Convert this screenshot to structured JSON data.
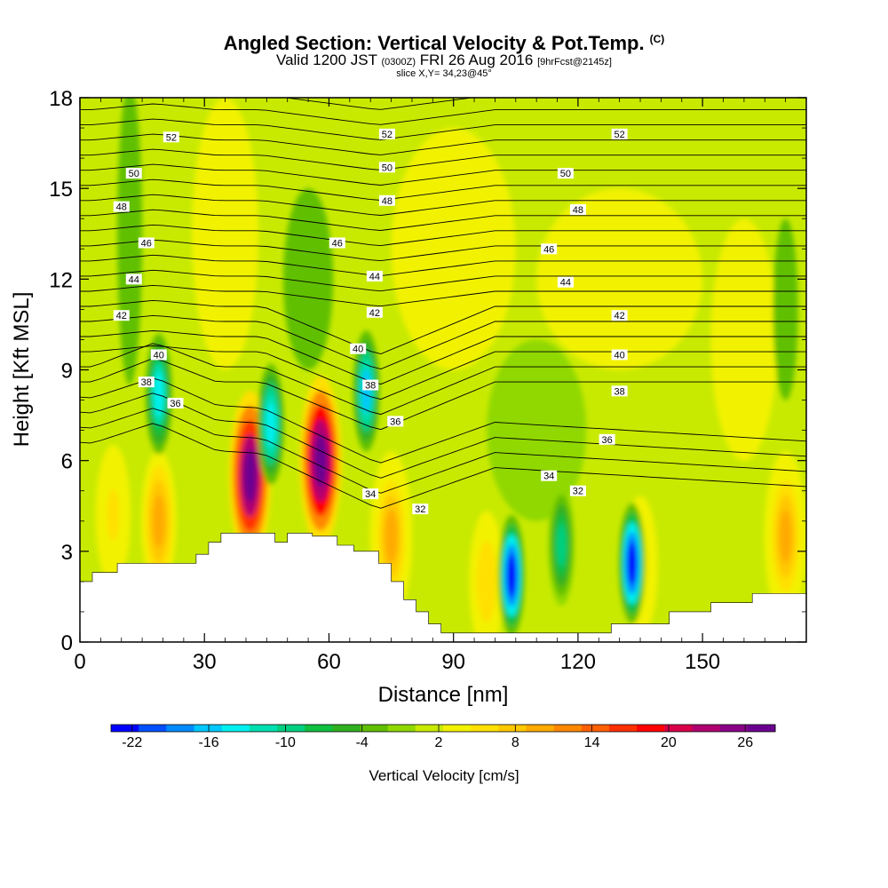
{
  "title": "Angled Section: Vertical Velocity & Pot.Temp.",
  "copyright": "(C)",
  "subtitle": {
    "valid": "Valid 1200 JST",
    "utc": "(0300Z)",
    "date": "FRI 26 Aug 2016",
    "fcst": "[9hrFcst@2145z]"
  },
  "slice": "slice X,Y= 34,23@45°",
  "chart_data": {
    "type": "heatmap",
    "xlabel": "Distance [nm]",
    "ylabel": "Height [Kft MSL]",
    "xlim": [
      0,
      175
    ],
    "ylim": [
      0,
      18
    ],
    "x_ticks": [
      0,
      30,
      60,
      90,
      120,
      150
    ],
    "y_ticks": [
      0,
      3,
      6,
      9,
      12,
      15,
      18
    ],
    "colorbar": {
      "label": "Vertical Velocity [cm/s]",
      "tick_labels": [
        "-22",
        "-16",
        "-10",
        "-4",
        "2",
        "8",
        "14",
        "20",
        "26"
      ],
      "tick_values": [
        -22,
        -16,
        -10,
        -4,
        2,
        8,
        14,
        20,
        26
      ],
      "colors": [
        "#0000ff",
        "#0050ff",
        "#008cff",
        "#00c8ff",
        "#00f0f0",
        "#00e0b0",
        "#00d080",
        "#10c040",
        "#30b020",
        "#60c000",
        "#90d800",
        "#c8ea00",
        "#f2f200",
        "#ffe000",
        "#ffc800",
        "#ffaa00",
        "#ff8800",
        "#ff6000",
        "#ff3000",
        "#ff0000",
        "#d8004a",
        "#b00070",
        "#8a0088",
        "#6a0090"
      ]
    },
    "terrain": [
      [
        0,
        2.0
      ],
      [
        3,
        2.0
      ],
      [
        3,
        2.3
      ],
      [
        9,
        2.3
      ],
      [
        9,
        2.6
      ],
      [
        28,
        2.6
      ],
      [
        28,
        2.9
      ],
      [
        31,
        2.9
      ],
      [
        31,
        3.3
      ],
      [
        34,
        3.3
      ],
      [
        34,
        3.6
      ],
      [
        47,
        3.6
      ],
      [
        47,
        3.3
      ],
      [
        50,
        3.3
      ],
      [
        50,
        3.6
      ],
      [
        56,
        3.6
      ],
      [
        56,
        3.5
      ],
      [
        62,
        3.5
      ],
      [
        62,
        3.2
      ],
      [
        66,
        3.2
      ],
      [
        66,
        3.0
      ],
      [
        72,
        3.0
      ],
      [
        72,
        2.6
      ],
      [
        75,
        2.6
      ],
      [
        75,
        2.0
      ],
      [
        78,
        2.0
      ],
      [
        78,
        1.4
      ],
      [
        81,
        1.4
      ],
      [
        81,
        1.0
      ],
      [
        84,
        1.0
      ],
      [
        84,
        0.6
      ],
      [
        87,
        0.6
      ],
      [
        87,
        0.3
      ],
      [
        128,
        0.3
      ],
      [
        128,
        0.6
      ],
      [
        142,
        0.6
      ],
      [
        142,
        1.0
      ],
      [
        152,
        1.0
      ],
      [
        152,
        1.3
      ],
      [
        162,
        1.3
      ],
      [
        162,
        1.6
      ],
      [
        175,
        1.6
      ],
      [
        175,
        0
      ],
      [
        0,
        0
      ]
    ],
    "updraft_cores": [
      {
        "x": 8,
        "y": 4.2,
        "w": 5,
        "v": 12
      },
      {
        "x": 19,
        "y": 4.0,
        "w": 9,
        "v": 12
      },
      {
        "x": 41,
        "y": 5.5,
        "w": 28,
        "v": 20
      },
      {
        "x": 58,
        "y": 6.0,
        "w": 29,
        "v": 24
      },
      {
        "x": 75,
        "y": 3.5,
        "w": 10,
        "v": 11
      },
      {
        "x": 98,
        "y": 2.0,
        "w": 6,
        "v": 9
      },
      {
        "x": 135,
        "y": 2.5,
        "w": 5,
        "v": 4
      },
      {
        "x": 170,
        "y": 3.5,
        "w": 10,
        "v": 7
      }
    ],
    "downdraft_cores": [
      {
        "x": 19,
        "y": 8.2,
        "w": -14,
        "v": -14
      },
      {
        "x": 46,
        "y": 7.2,
        "w": -15,
        "v": -15
      },
      {
        "x": 69,
        "y": 8.3,
        "w": -16,
        "v": -16
      },
      {
        "x": 104,
        "y": 2.2,
        "w": -22,
        "v": -22
      },
      {
        "x": 116,
        "y": 3.2,
        "w": -10,
        "v": -10
      },
      {
        "x": 133,
        "y": 2.6,
        "w": -22,
        "v": -22
      }
    ],
    "theta_labels": [
      {
        "v": "52",
        "x": 22,
        "y": 16.7
      },
      {
        "v": "52",
        "x": 74,
        "y": 16.8
      },
      {
        "v": "52",
        "x": 130,
        "y": 16.8
      },
      {
        "v": "50",
        "x": 13,
        "y": 15.5
      },
      {
        "v": "50",
        "x": 74,
        "y": 15.7
      },
      {
        "v": "50",
        "x": 117,
        "y": 15.5
      },
      {
        "v": "48",
        "x": 10,
        "y": 14.4
      },
      {
        "v": "48",
        "x": 74,
        "y": 14.6
      },
      {
        "v": "48",
        "x": 120,
        "y": 14.3
      },
      {
        "v": "46",
        "x": 16,
        "y": 13.2
      },
      {
        "v": "46",
        "x": 62,
        "y": 13.2
      },
      {
        "v": "46",
        "x": 113,
        "y": 13.0
      },
      {
        "v": "44",
        "x": 13,
        "y": 12.0
      },
      {
        "v": "44",
        "x": 71,
        "y": 12.1
      },
      {
        "v": "44",
        "x": 117,
        "y": 11.9
      },
      {
        "v": "42",
        "x": 10,
        "y": 10.8
      },
      {
        "v": "42",
        "x": 71,
        "y": 10.9
      },
      {
        "v": "42",
        "x": 130,
        "y": 10.8
      },
      {
        "v": "40",
        "x": 19,
        "y": 9.5
      },
      {
        "v": "40",
        "x": 67,
        "y": 9.7
      },
      {
        "v": "40",
        "x": 130,
        "y": 9.5
      },
      {
        "v": "38",
        "x": 16,
        "y": 8.6
      },
      {
        "v": "38",
        "x": 70,
        "y": 8.5
      },
      {
        "v": "38",
        "x": 130,
        "y": 8.3
      },
      {
        "v": "36",
        "x": 23,
        "y": 7.9
      },
      {
        "v": "36",
        "x": 76,
        "y": 7.3
      },
      {
        "v": "36",
        "x": 127,
        "y": 6.7
      },
      {
        "v": "34",
        "x": 70,
        "y": 4.9
      },
      {
        "v": "34",
        "x": 113,
        "y": 5.5
      },
      {
        "v": "32",
        "x": 82,
        "y": 4.4
      },
      {
        "v": "32",
        "x": 120,
        "y": 5.0
      }
    ]
  }
}
